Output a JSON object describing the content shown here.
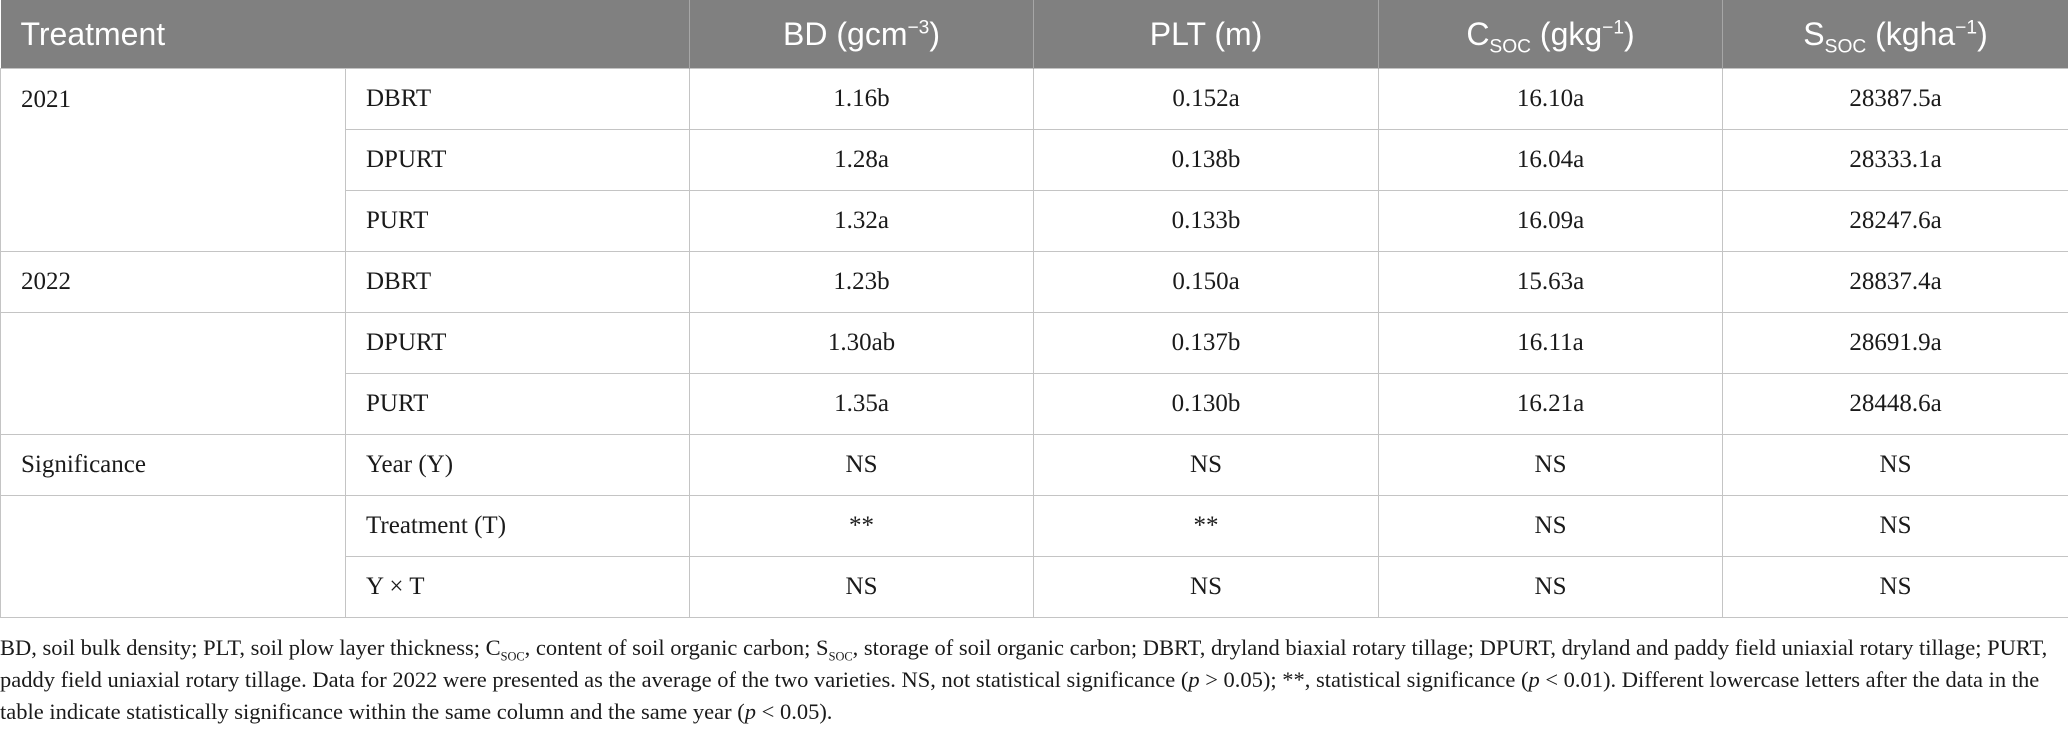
{
  "header": {
    "treatment": "Treatment",
    "bd": {
      "main": "BD (gcm",
      "sup": "−3",
      "tail": ")"
    },
    "plt": "PLT (m)",
    "csoc": {
      "main": "C",
      "sub": "SOC",
      "mid": " (gkg",
      "sup": "−1",
      "tail": ")"
    },
    "ssoc": {
      "main": "S",
      "sub": "SOC",
      "mid": " (kgha",
      "sup": "−1",
      "tail": ")"
    }
  },
  "rows": [
    {
      "group": "2021",
      "treatment": "DBRT",
      "bd": "1.16b",
      "plt": "0.152a",
      "csoc": "16.10a",
      "ssoc": "28387.5a"
    },
    {
      "group": "",
      "treatment": "DPURT",
      "bd": "1.28a",
      "plt": "0.138b",
      "csoc": "16.04a",
      "ssoc": "28333.1a"
    },
    {
      "group": "",
      "treatment": "PURT",
      "bd": "1.32a",
      "plt": "0.133b",
      "csoc": "16.09a",
      "ssoc": "28247.6a"
    },
    {
      "group": "2022",
      "treatment": "DBRT",
      "bd": "1.23b",
      "plt": "0.150a",
      "csoc": "15.63a",
      "ssoc": "28837.4a"
    },
    {
      "group": "",
      "treatment": "DPURT",
      "bd": "1.30ab",
      "plt": "0.137b",
      "csoc": "16.11a",
      "ssoc": "28691.9a"
    },
    {
      "group": "",
      "treatment": "PURT",
      "bd": "1.35a",
      "plt": "0.130b",
      "csoc": "16.21a",
      "ssoc": "28448.6a"
    },
    {
      "group": "Significance",
      "treatment": "Year (Y)",
      "bd": "NS",
      "plt": "NS",
      "csoc": "NS",
      "ssoc": "NS"
    },
    {
      "group": "",
      "treatment": "Treatment (T)",
      "bd": "**",
      "plt": "**",
      "csoc": "NS",
      "ssoc": "NS"
    },
    {
      "group": "",
      "treatment": "Y × T",
      "bd": "NS",
      "plt": "NS",
      "csoc": "NS",
      "ssoc": "NS"
    }
  ],
  "footnote": {
    "p1": "BD, soil bulk density; PLT, soil plow layer thickness; C",
    "sub1": "SOC",
    "p2": ", content of soil organic carbon; S",
    "sub2": "SOC",
    "p3": ", storage of soil organic carbon; DBRT, dryland biaxial rotary tillage; DPURT, dryland and paddy field uniaxial rotary tillage; PURT, paddy field uniaxial rotary tillage. Data for 2022 were presented as the average of the two varieties. NS, not statistical significance (",
    "p_sym1": "p",
    "p4": " > 0.05); **, statistical significance (",
    "p_sym2": "p",
    "p5": " < 0.01). Different lowercase letters after the data in the table indicate statistically significance within the same column and the same year (",
    "p_sym3": "p",
    "p6": " < 0.05)."
  }
}
